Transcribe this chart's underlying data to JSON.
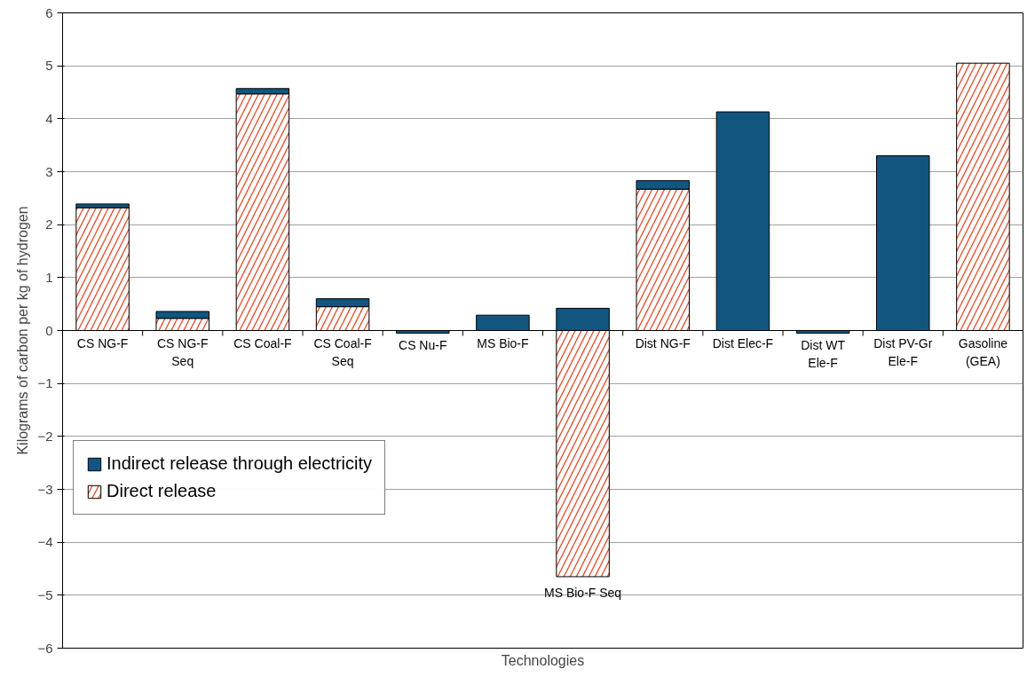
{
  "chart_data": {
    "type": "bar",
    "stacked": true,
    "xlabel": "Technologies",
    "ylabel": "Kilograms of carbon per kg of hydrogen",
    "categories": [
      "CS NG-F",
      "CS NG-F\nSeq",
      "CS Coal-F",
      "CS Coal-F\nSeq",
      "CS Nu-F",
      "MS Bio-F",
      "MS Bio-F Seq",
      "Dist NG-F",
      "Dist Elec-F",
      "Dist WT\nEle-F",
      "Dist PV-Gr\nEle-F",
      "Gasoline\n(GEA)"
    ],
    "series": [
      {
        "name": "Direct release",
        "color": "#e0502f",
        "values": [
          2.32,
          0.23,
          4.47,
          0.45,
          null,
          null,
          -4.65,
          2.67,
          null,
          null,
          null,
          5.05
        ]
      },
      {
        "name": "Indirect release through electricity",
        "color": "#12557f",
        "values": [
          0.07,
          0.13,
          0.1,
          0.15,
          -0.05,
          0.29,
          0.42,
          0.16,
          4.13,
          -0.05,
          3.3,
          null
        ]
      }
    ],
    "ylim": [
      -6,
      6
    ],
    "yticks": [
      -6,
      -5,
      -4,
      -3,
      -2,
      -1,
      0,
      1,
      2,
      3,
      4,
      5,
      6
    ],
    "grid": "y",
    "legend": "left"
  }
}
